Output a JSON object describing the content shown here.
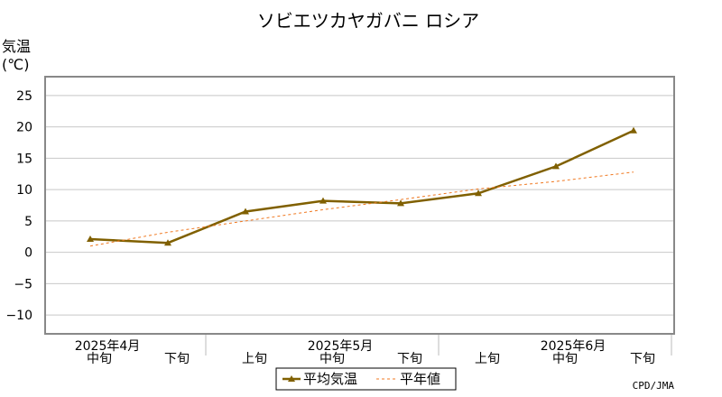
{
  "chart_data": {
    "type": "line",
    "title": "ソビエツカヤガバニ ロシア",
    "ylabel_line1": "気温",
    "ylabel_line2": "(℃)",
    "ylim": [
      -13,
      28
    ],
    "yticks": [
      25,
      20,
      15,
      10,
      5,
      0,
      -5,
      -10
    ],
    "grid": true,
    "categories": [
      "中旬",
      "下旬",
      "上旬",
      "中旬",
      "下旬",
      "上旬",
      "中旬",
      "下旬"
    ],
    "month_labels": [
      "2025年4月",
      "2025年5月",
      "2025年6月"
    ],
    "series": [
      {
        "name": "平均気温",
        "values": [
          2.1,
          1.5,
          6.5,
          8.2,
          7.8,
          9.4,
          13.7,
          19.4
        ],
        "color": "#806000",
        "style": "solid"
      },
      {
        "name": "平年値",
        "values": [
          1.0,
          3.2,
          5.0,
          6.8,
          8.4,
          10.1,
          11.3,
          12.8
        ],
        "color": "#f07820",
        "style": "dashed"
      }
    ],
    "legend_position": "bottom-center",
    "credit": "CPD/JMA"
  }
}
